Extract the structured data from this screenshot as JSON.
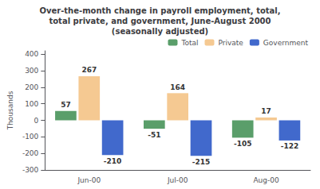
{
  "chart_data": {
    "type": "bar",
    "title": "Over-the-month change in payroll employment, total,\ntotal private, and government, June-August 2000\n(seasonally adjusted)",
    "categories": [
      "Jun-00",
      "Jul-00",
      "Aug-00"
    ],
    "series": [
      {
        "name": "Total",
        "color": "#5a9e6a",
        "values": [
          57,
          -51,
          -105
        ]
      },
      {
        "name": "Private",
        "color": "#f5c992",
        "values": [
          267,
          164,
          17
        ]
      },
      {
        "name": "Government",
        "color": "#4169cc",
        "values": [
          -210,
          -215,
          -122
        ]
      }
    ],
    "ylabel": "Thousands",
    "ylim": [
      -300,
      420
    ],
    "yticks": [
      -300,
      -200,
      -100,
      0,
      100,
      200,
      300,
      400
    ],
    "grid": false,
    "legend": "upper right",
    "data_labels": true
  }
}
